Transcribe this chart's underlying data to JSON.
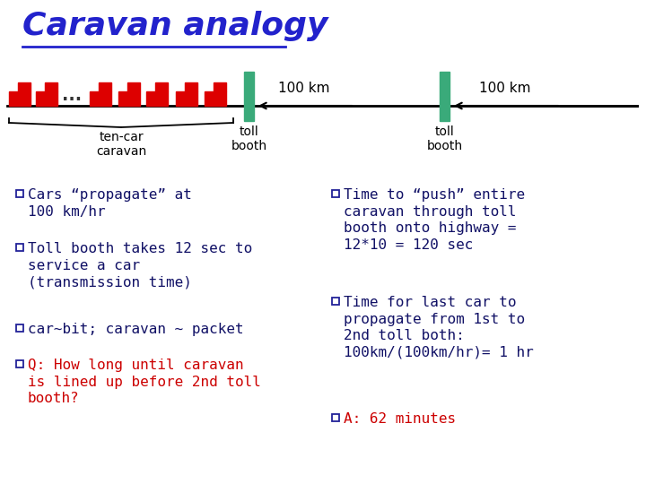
{
  "title": "Caravan analogy",
  "title_color": "#2222cc",
  "title_fontsize": 26,
  "background_color": "#ffffff",
  "car_color": "#dd0000",
  "toll_booth_color": "#3aaa7a",
  "line_color": "#000000",
  "bullet_color": "#222299",
  "left_bullets": [
    {
      "text": "Cars “propagate” at\n100 km/hr",
      "color": "#111166"
    },
    {
      "text": "Toll booth takes 12 sec to\nservice a car\n(transmission time)",
      "color": "#111166"
    },
    {
      "text": "car~bit; caravan ~ packet",
      "color": "#111166"
    },
    {
      "text": "Q: How long until caravan\nis lined up before 2nd toll\nbooth?",
      "color": "#cc0000"
    }
  ],
  "right_bullets": [
    {
      "text": "Time to “push” entire\ncaravan through toll\nbooth onto highway =\n12*10 = 120 sec",
      "color": "#111166"
    },
    {
      "text": "Time for last car to\npropagate from 1st to\n2nd toll both:\n100km/(100km/hr)= 1 hr",
      "color": "#111166"
    },
    {
      "text": "A: 62 minutes",
      "color": "#cc0000"
    }
  ],
  "label_100km_left": "100 km",
  "label_100km_right": "100 km",
  "label_tencar": "ten-car\ncaravan",
  "label_tollbooth": "toll\nbooth"
}
